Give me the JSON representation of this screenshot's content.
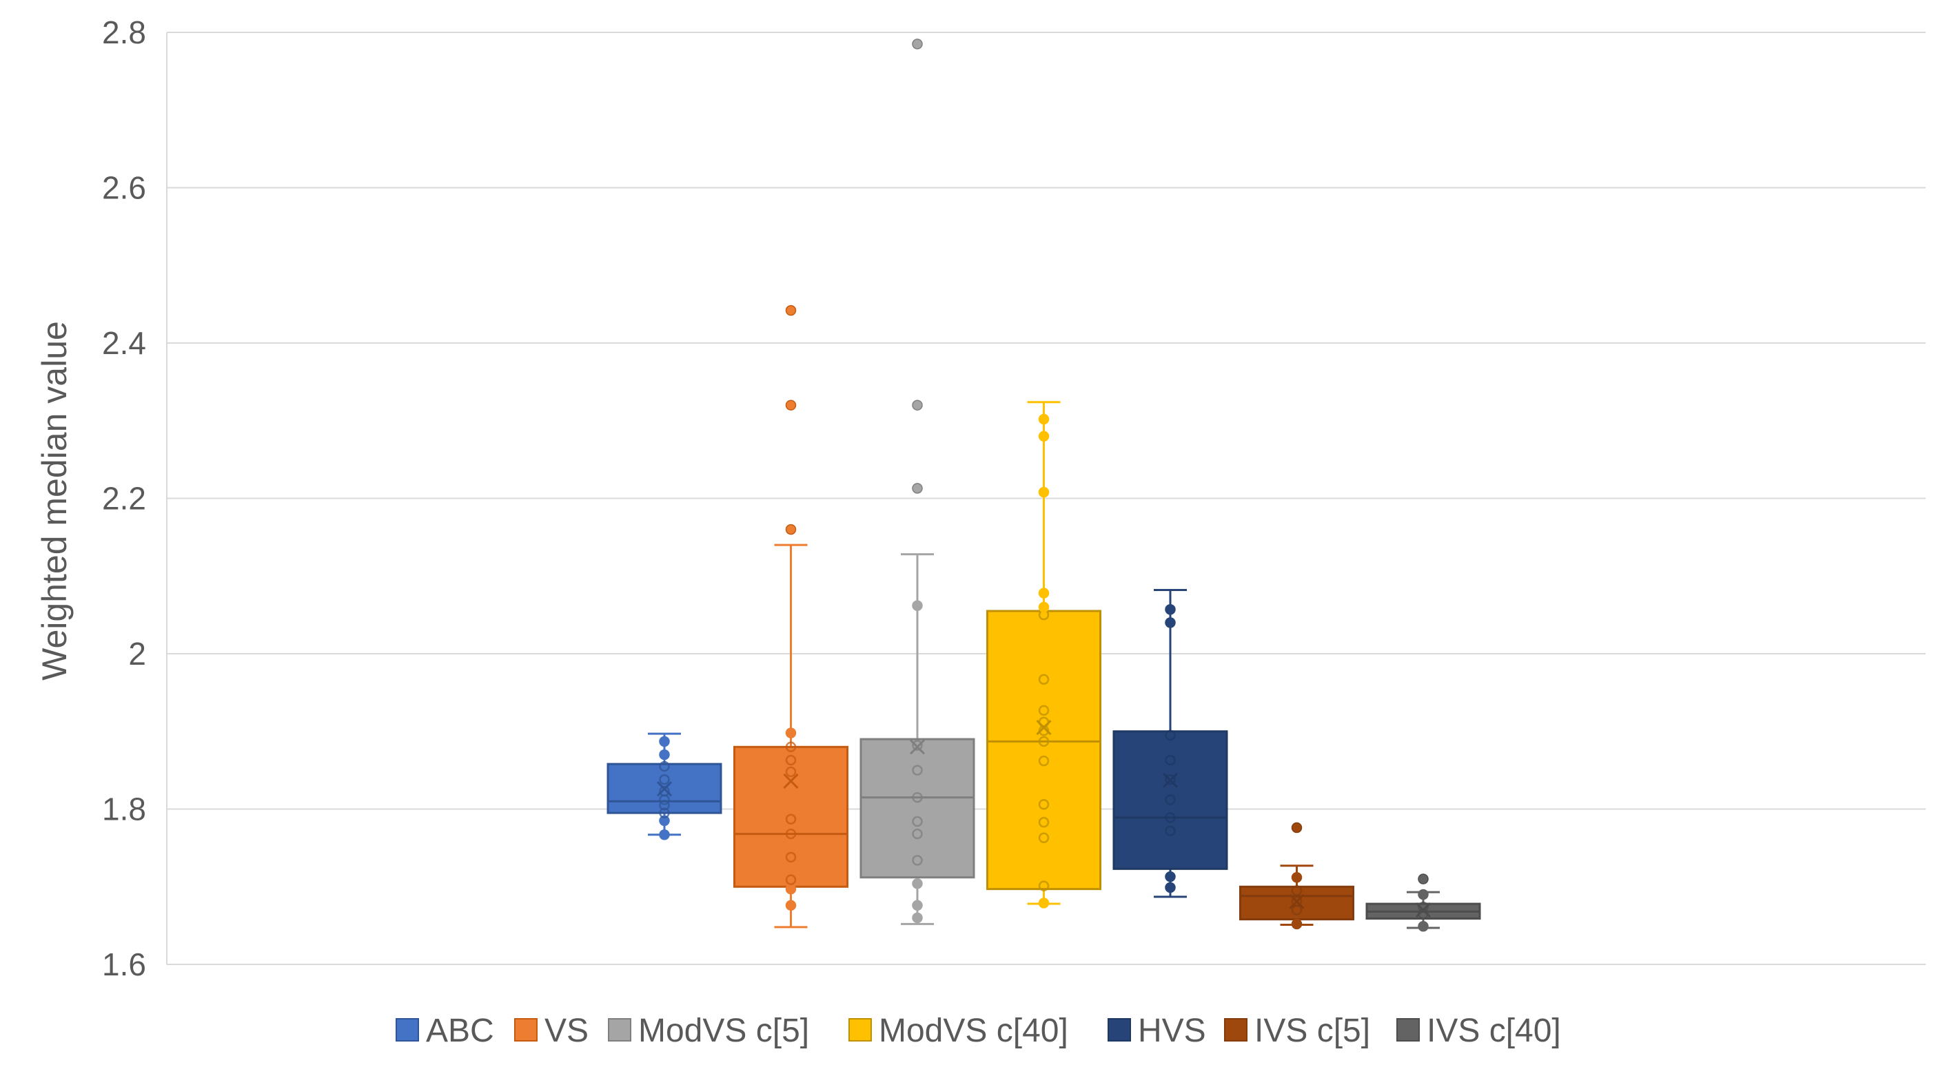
{
  "chart_data": {
    "type": "box",
    "ylabel": "Weighted median value",
    "xlabel": "",
    "ylim": [
      1.6,
      2.8
    ],
    "yticks": [
      1.6,
      1.8,
      2,
      2.2,
      2.4,
      2.6,
      2.8
    ],
    "ytick_labels": [
      "1.6",
      "1.8",
      "2",
      "2.2",
      "2.4",
      "2.6",
      "2.8"
    ],
    "grid": true,
    "legend_position": "bottom",
    "series": [
      {
        "name": "ABC",
        "color": "#4472C4",
        "edge": "#2F5597",
        "whisker_low": 1.767,
        "q1": 1.795,
        "median": 1.81,
        "q3": 1.858,
        "whisker_high": 1.897,
        "mean": 1.826,
        "points": [
          1.767,
          1.785,
          1.795,
          1.805,
          1.812,
          1.823,
          1.838,
          1.855,
          1.87,
          1.887
        ],
        "outliers": []
      },
      {
        "name": "VS",
        "color": "#ED7D31",
        "edge": "#C55A11",
        "whisker_low": 1.648,
        "q1": 1.7,
        "median": 1.768,
        "q3": 1.88,
        "whisker_high": 2.14,
        "mean": 1.836,
        "points": [
          1.676,
          1.697,
          1.709,
          1.738,
          1.768,
          1.787,
          1.848,
          1.863,
          1.88,
          1.898
        ],
        "outliers": [
          2.16,
          2.32,
          2.442
        ]
      },
      {
        "name": "ModVS c[5]",
        "color": "#A5A5A5",
        "edge": "#7F7F7F",
        "whisker_low": 1.652,
        "q1": 1.712,
        "median": 1.815,
        "q3": 1.89,
        "whisker_high": 2.128,
        "mean": 1.88,
        "points": [
          1.66,
          1.676,
          1.704,
          1.734,
          1.768,
          1.784,
          1.815,
          1.85,
          1.882,
          2.062
        ],
        "outliers": [
          2.213,
          2.32,
          2.785
        ]
      },
      {
        "name": "ModVS c[40]",
        "color": "#FFC000",
        "edge": "#BF9000",
        "whisker_low": 1.678,
        "q1": 1.697,
        "median": 1.887,
        "q3": 2.055,
        "whisker_high": 2.324,
        "mean": 1.905,
        "points": [
          1.679,
          1.701,
          1.763,
          1.783,
          1.806,
          1.862,
          1.887,
          1.901,
          1.912,
          1.927,
          1.967,
          2.05,
          2.06,
          2.078,
          2.208,
          2.28,
          2.302
        ],
        "outliers": []
      },
      {
        "name": "HVS",
        "color": "#264478",
        "edge": "#1F3864",
        "whisker_low": 1.687,
        "q1": 1.723,
        "median": 1.789,
        "q3": 1.9,
        "whisker_high": 2.082,
        "mean": 1.837,
        "points": [
          1.699,
          1.713,
          1.772,
          1.789,
          1.812,
          1.838,
          1.863,
          1.895,
          2.04,
          2.057
        ],
        "outliers": []
      },
      {
        "name": "IVS c[5]",
        "color": "#9E480E",
        "edge": "#843C0C",
        "whisker_low": 1.651,
        "q1": 1.658,
        "median": 1.688,
        "q3": 1.7,
        "whisker_high": 1.727,
        "mean": 1.681,
        "points": [
          1.652,
          1.67,
          1.681,
          1.695,
          1.712
        ],
        "outliers": [
          1.776
        ]
      },
      {
        "name": "IVS c[40]",
        "color": "#636363",
        "edge": "#4D4D4D",
        "whisker_low": 1.647,
        "q1": 1.659,
        "median": 1.668,
        "q3": 1.678,
        "whisker_high": 1.693,
        "mean": 1.67,
        "points": [
          1.649,
          1.665,
          1.674,
          1.69
        ],
        "outliers": [
          1.71
        ]
      }
    ]
  }
}
